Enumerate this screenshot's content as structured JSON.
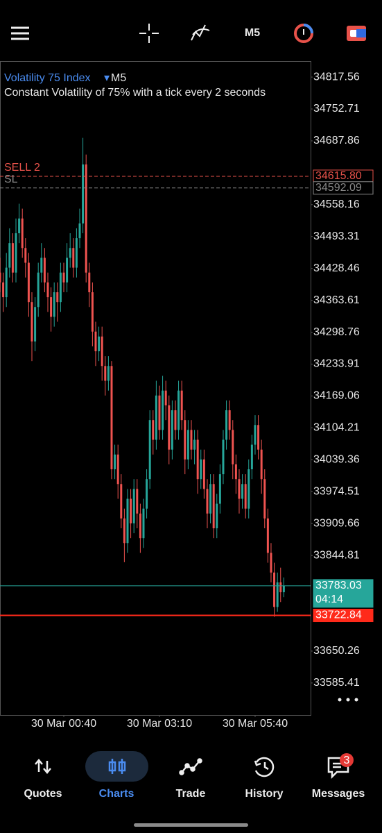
{
  "chart_data": {
    "type": "candlestick",
    "title": "Volatility 75 Index",
    "timeframe": "M5",
    "subtitle": "Constant Volatility of 75% with a tick every 2 seconds",
    "up_color": "#26a69a",
    "down_color": "#ef5350",
    "ylim": [
      33520.3,
      34850.1
    ],
    "yticks": [
      34817.56,
      34752.71,
      34687.86,
      34558.16,
      34493.31,
      34428.46,
      34363.61,
      34298.76,
      34233.91,
      34169.06,
      34104.21,
      34039.36,
      33974.51,
      33909.66,
      33844.81,
      33650.26,
      33585.41
    ],
    "xlim": [
      0,
      97.4
    ],
    "xticks": [
      {
        "value": 20,
        "label": "30 Mar 00:40"
      },
      {
        "value": 50,
        "label": "30 Mar 03:10"
      },
      {
        "value": 80,
        "label": "30 Mar 05:40"
      }
    ],
    "open": [
      34420,
      34400,
      34370,
      34430,
      34480,
      34420,
      34500,
      34530,
      34470,
      34440,
      34360,
      34280,
      34350,
      34420,
      34450,
      34400,
      34370,
      34330,
      34380,
      34360,
      34420,
      34400,
      34450,
      34470,
      34430,
      34490,
      34520,
      34640,
      34420,
      34380,
      34300,
      34260,
      34290,
      34230,
      34200,
      34230,
      34020,
      34050,
      33990,
      33920,
      33870,
      33960,
      33910,
      33980,
      33930,
      33880,
      33940,
      34000,
      34120,
      34080,
      34170,
      34100,
      34180,
      34150,
      34060,
      34140,
      34100,
      34180,
      34120,
      34040,
      34100,
      34060,
      34080,
      34000,
      34040,
      33980,
      33930,
      33990,
      33900,
      33950,
      34010,
      34080,
      34140,
      34100,
      34030,
      34000,
      33960,
      33990,
      33940,
      34020,
      34070,
      34110,
      34060,
      34000,
      33920,
      33850,
      33810,
      33740,
      33790,
      33770
    ],
    "high": [
      34450,
      34420,
      34460,
      34510,
      34500,
      34530,
      34560,
      34550,
      34490,
      34460,
      34380,
      34370,
      34440,
      34480,
      34470,
      34420,
      34390,
      34400,
      34400,
      34440,
      34440,
      34480,
      34500,
      34490,
      34510,
      34550,
      34694,
      34660,
      34440,
      34400,
      34320,
      34310,
      34310,
      34250,
      34250,
      34240,
      34070,
      34070,
      34010,
      33940,
      33980,
      33980,
      34000,
      34000,
      33950,
      33960,
      34020,
      34140,
      34140,
      34200,
      34190,
      34210,
      34200,
      34170,
      34160,
      34160,
      34200,
      34200,
      34140,
      34120,
      34120,
      34100,
      34100,
      34060,
      34060,
      34000,
      34010,
      34010,
      33970,
      34030,
      34100,
      34160,
      34160,
      34120,
      34050,
      34020,
      34010,
      34010,
      34040,
      34090,
      34130,
      34130,
      34080,
      34020,
      33940,
      33870,
      33830,
      33810,
      33820,
      33800
    ],
    "low": [
      34380,
      34340,
      34350,
      34410,
      34400,
      34400,
      34480,
      34450,
      34410,
      34330,
      34240,
      34260,
      34330,
      34400,
      34380,
      34340,
      34300,
      34310,
      34320,
      34340,
      34380,
      34380,
      34430,
      34410,
      34410,
      34470,
      34500,
      34400,
      34350,
      34270,
      34230,
      34240,
      34200,
      34170,
      34180,
      34000,
      34000,
      33960,
      33900,
      33831,
      33850,
      33880,
      33890,
      33900,
      33850,
      33860,
      33920,
      33980,
      34050,
      34060,
      34080,
      34080,
      34120,
      34030,
      34040,
      34080,
      34080,
      34100,
      34010,
      34020,
      34040,
      34030,
      33970,
      33980,
      33960,
      33900,
      33910,
      33880,
      33880,
      33930,
      33990,
      34060,
      34080,
      34000,
      33970,
      33930,
      33940,
      33920,
      33920,
      34000,
      34050,
      34040,
      33970,
      33900,
      33830,
      33790,
      33720,
      33730,
      33750,
      33760
    ],
    "close": [
      34400,
      34370,
      34430,
      34480,
      34420,
      34500,
      34530,
      34470,
      34440,
      34360,
      34280,
      34350,
      34420,
      34450,
      34400,
      34370,
      34330,
      34380,
      34360,
      34420,
      34400,
      34450,
      34470,
      34430,
      34490,
      34520,
      34640,
      34420,
      34380,
      34300,
      34260,
      34290,
      34230,
      34200,
      34230,
      34020,
      34050,
      33990,
      33920,
      33870,
      33960,
      33910,
      33980,
      33930,
      33880,
      33940,
      34000,
      34120,
      34080,
      34170,
      34100,
      34180,
      34150,
      34060,
      34140,
      34100,
      34180,
      34120,
      34040,
      34100,
      34060,
      34080,
      34000,
      34040,
      33980,
      33930,
      33990,
      33900,
      33950,
      34010,
      34080,
      34140,
      34100,
      34030,
      34000,
      33960,
      33990,
      33940,
      34020,
      34070,
      34110,
      34060,
      34000,
      33920,
      33850,
      33810,
      33740,
      33790,
      33770,
      33783
    ],
    "levels": [
      {
        "name": "SELL 2",
        "value": 34615.8,
        "label": "34615.80",
        "color": "#e8524a",
        "dashed": true
      },
      {
        "name": "SL",
        "value": 34592.09,
        "color": "#8a8a8a",
        "dashed": true
      },
      {
        "value": 33783.03,
        "timer": "04:14",
        "color": "#26a69a",
        "dashed": false
      },
      {
        "value": 33722.84,
        "color": "#ff2a1a",
        "dashed": false
      }
    ]
  },
  "nav": {
    "items": [
      "Quotes",
      "Charts",
      "Trade",
      "History",
      "Messages"
    ],
    "active": 1,
    "badge": 3
  }
}
